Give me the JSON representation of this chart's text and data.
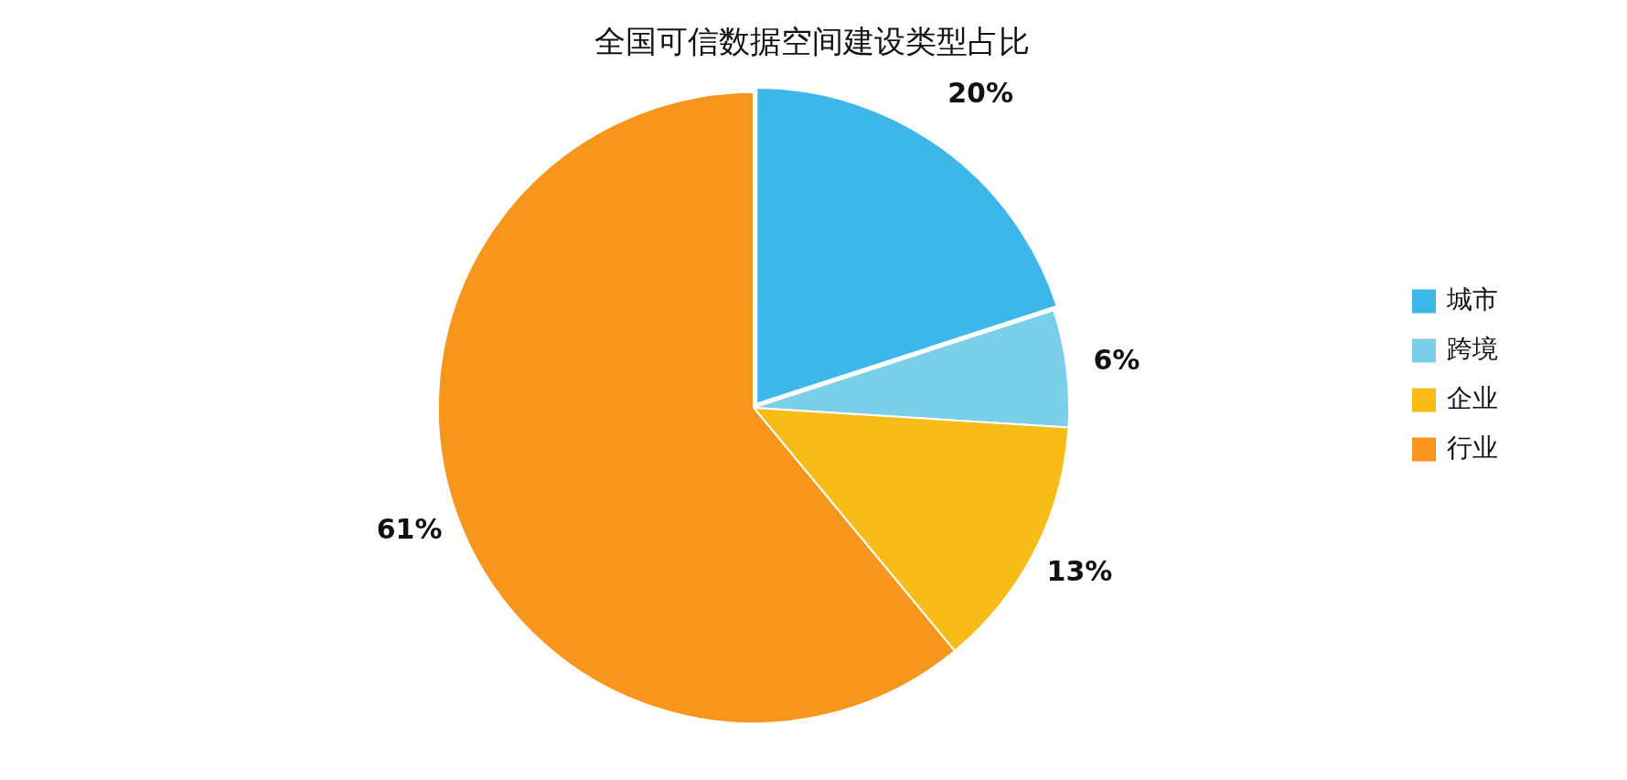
{
  "chart_data": {
    "type": "pie",
    "title": "全国可信数据空间建设类型占比",
    "categories": [
      "城市",
      "跨境",
      "企业",
      "行业"
    ],
    "values": [
      20,
      6,
      13,
      61
    ],
    "colors": [
      "#3db6ea",
      "#7ad0e8",
      "#f7bc17",
      "#f8951d"
    ],
    "value_labels": [
      "20%",
      "6%",
      "13%",
      "61%"
    ],
    "legend": "right"
  }
}
